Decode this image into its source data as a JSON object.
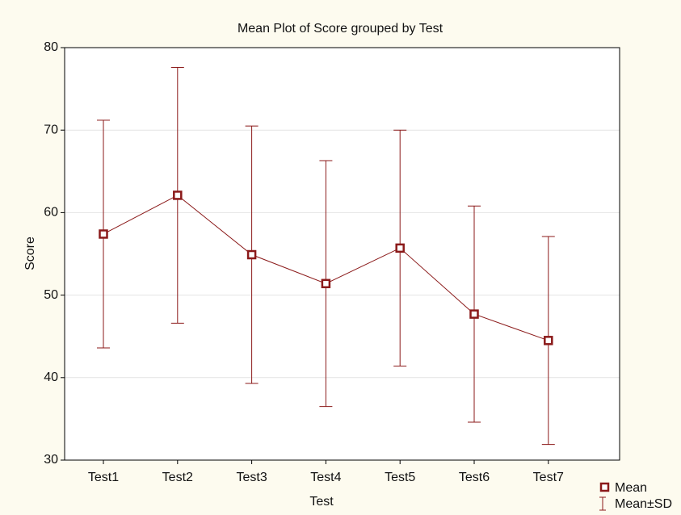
{
  "chart_data": {
    "type": "mean-error",
    "title": "Mean Plot of Score grouped by  Test",
    "x_label": "Test",
    "y_label": "Score",
    "categories": [
      "Test1",
      "Test2",
      "Test3",
      "Test4",
      "Test5",
      "Test6",
      "Test7"
    ],
    "series": [
      {
        "name": "Mean",
        "color": "#8b1a1a",
        "values": [
          57.4,
          62.1,
          54.9,
          51.4,
          55.7,
          47.7,
          44.5
        ],
        "errors": [
          13.8,
          15.5,
          15.6,
          14.9,
          14.3,
          13.1,
          12.6
        ],
        "error_name": "Mean±SD"
      }
    ],
    "ylim": [
      30,
      80
    ],
    "yticks": [
      30,
      40,
      50,
      60,
      70,
      80
    ],
    "grid": true
  }
}
